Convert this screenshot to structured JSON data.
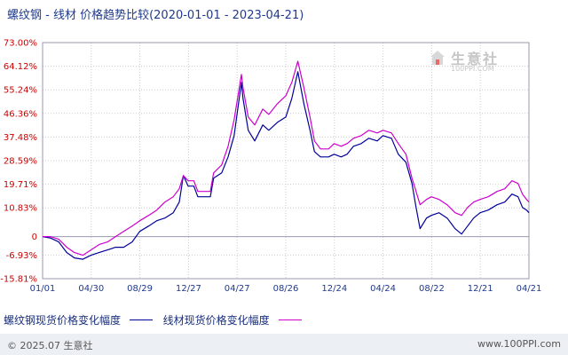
{
  "title": "螺纹钢 - 线材 价格趋势比较(2020-01-01 - 2023-04-21)",
  "watermark": {
    "name": "生意社",
    "url": "100PPI.COM"
  },
  "footer": {
    "copyright": "© 2025.07 生意社",
    "site": "www.100PPI.com"
  },
  "colors": {
    "rebar": "#000099",
    "wire": "#cc00cc",
    "tick_text": "#cc0000",
    "grid": "#cccccc"
  },
  "chart_data": {
    "type": "line",
    "title": "螺纹钢 - 线材 价格趋势比较(2020-01-01 - 2023-04-21)",
    "xlabel": "",
    "ylabel": "",
    "grid": true,
    "legend_position": "bottom-left",
    "ylim": [
      -15.81,
      73.0
    ],
    "y_ticks": [
      "73.00%",
      "64.12%",
      "55.24%",
      "46.36%",
      "37.48%",
      "28.59%",
      "19.71%",
      "10.83%",
      "0",
      "-6.93%",
      "-15.81%"
    ],
    "y_tick_values": [
      73.0,
      64.12,
      55.24,
      46.36,
      37.48,
      28.59,
      19.71,
      10.83,
      0,
      -6.93,
      -15.81
    ],
    "x_ticks": [
      "01/01",
      "04/30",
      "08/29",
      "12/27",
      "04/27",
      "08/26",
      "12/24",
      "04/24",
      "08/22",
      "12/21",
      "04/21"
    ],
    "x_range": [
      "2020-01-01",
      "2023-04-21"
    ],
    "series": [
      {
        "name": "螺纹钢现货价格变化幅度",
        "color": "#000099",
        "points": [
          [
            "2020-01-01",
            0
          ],
          [
            "2020-01-20",
            -0.5
          ],
          [
            "2020-02-10",
            -2
          ],
          [
            "2020-03-01",
            -6
          ],
          [
            "2020-03-20",
            -8
          ],
          [
            "2020-04-10",
            -8.5
          ],
          [
            "2020-04-30",
            -7
          ],
          [
            "2020-05-20",
            -6
          ],
          [
            "2020-06-10",
            -5
          ],
          [
            "2020-06-30",
            -4
          ],
          [
            "2020-07-20",
            -4
          ],
          [
            "2020-08-10",
            -2
          ],
          [
            "2020-08-29",
            2
          ],
          [
            "2020-09-20",
            4
          ],
          [
            "2020-10-10",
            6
          ],
          [
            "2020-10-30",
            7
          ],
          [
            "2020-11-20",
            9
          ],
          [
            "2020-12-05",
            13
          ],
          [
            "2020-12-15",
            23
          ],
          [
            "2020-12-27",
            19
          ],
          [
            "2021-01-10",
            19
          ],
          [
            "2021-01-20",
            15
          ],
          [
            "2021-02-20",
            15
          ],
          [
            "2021-02-28",
            22
          ],
          [
            "2021-03-20",
            24
          ],
          [
            "2021-04-05",
            30
          ],
          [
            "2021-04-20",
            38
          ],
          [
            "2021-05-08",
            58
          ],
          [
            "2021-05-12",
            52
          ],
          [
            "2021-05-25",
            40
          ],
          [
            "2021-06-10",
            36
          ],
          [
            "2021-06-30",
            42
          ],
          [
            "2021-07-15",
            40
          ],
          [
            "2021-08-05",
            43
          ],
          [
            "2021-08-26",
            45
          ],
          [
            "2021-09-10",
            52
          ],
          [
            "2021-09-25",
            62
          ],
          [
            "2021-10-10",
            50
          ],
          [
            "2021-10-25",
            40
          ],
          [
            "2021-11-05",
            32
          ],
          [
            "2021-11-20",
            30
          ],
          [
            "2021-12-10",
            30
          ],
          [
            "2021-12-24",
            31
          ],
          [
            "2022-01-10",
            30
          ],
          [
            "2022-01-25",
            31
          ],
          [
            "2022-02-10",
            34
          ],
          [
            "2022-03-01",
            35
          ],
          [
            "2022-03-20",
            37
          ],
          [
            "2022-04-10",
            36
          ],
          [
            "2022-04-24",
            38
          ],
          [
            "2022-05-15",
            37
          ],
          [
            "2022-06-01",
            31
          ],
          [
            "2022-06-20",
            28
          ],
          [
            "2022-07-05",
            20
          ],
          [
            "2022-07-15",
            11
          ],
          [
            "2022-07-25",
            3
          ],
          [
            "2022-08-10",
            7
          ],
          [
            "2022-08-22",
            8
          ],
          [
            "2022-09-10",
            9
          ],
          [
            "2022-09-30",
            7
          ],
          [
            "2022-10-20",
            3
          ],
          [
            "2022-11-05",
            1
          ],
          [
            "2022-11-20",
            4
          ],
          [
            "2022-12-05",
            7
          ],
          [
            "2022-12-21",
            9
          ],
          [
            "2023-01-10",
            10
          ],
          [
            "2023-02-01",
            12
          ],
          [
            "2023-02-20",
            13
          ],
          [
            "2023-03-10",
            16
          ],
          [
            "2023-03-25",
            15
          ],
          [
            "2023-04-05",
            11
          ],
          [
            "2023-04-15",
            10
          ],
          [
            "2023-04-21",
            9
          ]
        ]
      },
      {
        "name": "线材现货价格变化幅度",
        "color": "#cc00cc",
        "points": [
          [
            "2020-01-01",
            0
          ],
          [
            "2020-01-20",
            0
          ],
          [
            "2020-02-10",
            -1
          ],
          [
            "2020-03-01",
            -4
          ],
          [
            "2020-03-20",
            -6
          ],
          [
            "2020-04-10",
            -7
          ],
          [
            "2020-04-30",
            -5
          ],
          [
            "2020-05-20",
            -3
          ],
          [
            "2020-06-10",
            -2
          ],
          [
            "2020-06-30",
            0
          ],
          [
            "2020-07-20",
            2
          ],
          [
            "2020-08-10",
            4
          ],
          [
            "2020-08-29",
            6
          ],
          [
            "2020-09-20",
            8
          ],
          [
            "2020-10-10",
            10
          ],
          [
            "2020-10-30",
            13
          ],
          [
            "2020-11-20",
            15
          ],
          [
            "2020-12-05",
            18
          ],
          [
            "2020-12-15",
            23
          ],
          [
            "2020-12-27",
            21
          ],
          [
            "2021-01-10",
            21
          ],
          [
            "2021-01-20",
            17
          ],
          [
            "2021-02-20",
            17
          ],
          [
            "2021-02-28",
            24
          ],
          [
            "2021-03-20",
            27
          ],
          [
            "2021-04-05",
            34
          ],
          [
            "2021-04-20",
            44
          ],
          [
            "2021-05-08",
            61
          ],
          [
            "2021-05-12",
            56
          ],
          [
            "2021-05-25",
            45
          ],
          [
            "2021-06-10",
            42
          ],
          [
            "2021-06-30",
            48
          ],
          [
            "2021-07-15",
            46
          ],
          [
            "2021-08-05",
            50
          ],
          [
            "2021-08-26",
            53
          ],
          [
            "2021-09-10",
            58
          ],
          [
            "2021-09-25",
            66
          ],
          [
            "2021-10-10",
            56
          ],
          [
            "2021-10-25",
            45
          ],
          [
            "2021-11-05",
            36
          ],
          [
            "2021-11-20",
            33
          ],
          [
            "2021-12-10",
            33
          ],
          [
            "2021-12-24",
            35
          ],
          [
            "2022-01-10",
            34
          ],
          [
            "2022-01-25",
            35
          ],
          [
            "2022-02-10",
            37
          ],
          [
            "2022-03-01",
            38
          ],
          [
            "2022-03-20",
            40
          ],
          [
            "2022-04-10",
            39
          ],
          [
            "2022-04-24",
            40
          ],
          [
            "2022-05-15",
            39
          ],
          [
            "2022-06-01",
            35
          ],
          [
            "2022-06-20",
            31
          ],
          [
            "2022-07-05",
            22
          ],
          [
            "2022-07-15",
            17
          ],
          [
            "2022-07-25",
            12
          ],
          [
            "2022-08-10",
            14
          ],
          [
            "2022-08-22",
            15
          ],
          [
            "2022-09-10",
            14
          ],
          [
            "2022-09-30",
            12
          ],
          [
            "2022-10-20",
            9
          ],
          [
            "2022-11-05",
            8
          ],
          [
            "2022-11-20",
            11
          ],
          [
            "2022-12-05",
            13
          ],
          [
            "2022-12-21",
            14
          ],
          [
            "2023-01-10",
            15
          ],
          [
            "2023-02-01",
            17
          ],
          [
            "2023-02-20",
            18
          ],
          [
            "2023-03-10",
            21
          ],
          [
            "2023-03-25",
            20
          ],
          [
            "2023-04-05",
            16
          ],
          [
            "2023-04-15",
            14
          ],
          [
            "2023-04-21",
            13
          ]
        ]
      }
    ]
  }
}
